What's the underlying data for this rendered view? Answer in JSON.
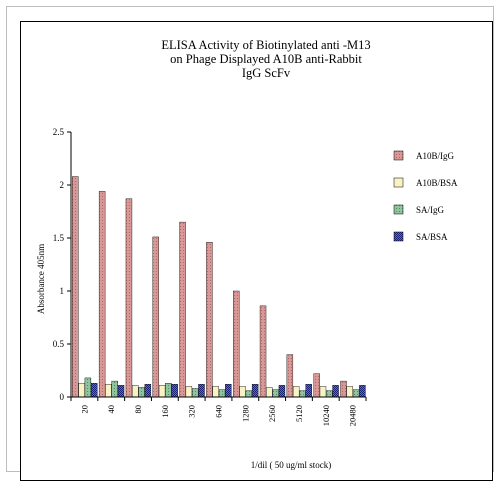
{
  "chart_data": {
    "type": "bar",
    "title_lines": [
      "ELISA Activity of Biotinylated anti -M13",
      "on Phage Displayed A10B anti-Rabbit",
      "IgG ScFv"
    ],
    "xlabel": "1/dil ( 50 ug/ml stock)",
    "ylabel": "Absorbance 405nm",
    "ylim": [
      0,
      2.5
    ],
    "yticks": [
      "0",
      "0.5",
      "1",
      "1.5",
      "2",
      "2.5"
    ],
    "categories": [
      "20",
      "40",
      "80",
      "160",
      "320",
      "640",
      "1280",
      "2560",
      "5120",
      "10240",
      "20480"
    ],
    "legend_position": "right",
    "series": [
      {
        "name": "A10B/IgG",
        "color": "#d99795",
        "pattern": "fine-dots",
        "values": [
          2.08,
          1.94,
          1.87,
          1.51,
          1.65,
          1.46,
          1.0,
          0.86,
          0.4,
          0.22,
          0.15
        ]
      },
      {
        "name": "A10B/BSA",
        "color": "#f8f3c6",
        "pattern": "solid",
        "values": [
          0.13,
          0.12,
          0.11,
          0.11,
          0.1,
          0.1,
          0.1,
          0.09,
          0.1,
          0.1,
          0.1
        ]
      },
      {
        "name": "SA/IgG",
        "color": "#8fc49e",
        "pattern": "fine-dots",
        "values": [
          0.18,
          0.15,
          0.09,
          0.13,
          0.08,
          0.07,
          0.06,
          0.07,
          0.06,
          0.06,
          0.07
        ]
      },
      {
        "name": "SA/BSA",
        "color": "#2e3aa0",
        "pattern": "checker",
        "values": [
          0.13,
          0.11,
          0.12,
          0.12,
          0.12,
          0.12,
          0.12,
          0.11,
          0.12,
          0.11,
          0.11
        ]
      }
    ]
  }
}
